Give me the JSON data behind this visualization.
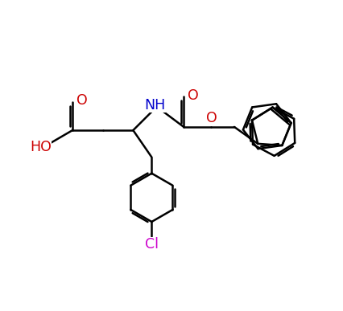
{
  "background_color": "#ffffff",
  "bond_color": "#000000",
  "N_color": "#0000cc",
  "O_color": "#cc0000",
  "Cl_color": "#cc00cc",
  "line_width": 1.8,
  "fig_width": 4.27,
  "fig_height": 3.87,
  "dpi": 100,
  "xlim": [
    0,
    10
  ],
  "ylim": [
    0,
    9
  ]
}
